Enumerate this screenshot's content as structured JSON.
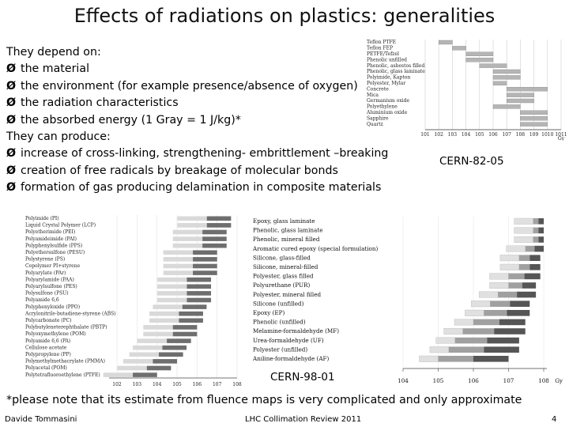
{
  "slide": {
    "title": "Effects of radiations on plastics: generalities",
    "lines": [
      {
        "bullet": false,
        "text": "They depend on:"
      },
      {
        "bullet": true,
        "text": "the material"
      },
      {
        "bullet": true,
        "text": "the environment (for example presence/absence of oxygen)"
      },
      {
        "bullet": true,
        "text": "the radiation characteristics"
      },
      {
        "bullet": true,
        "text": "the absorbed energy (1 Gray = 1 J/kg)*"
      },
      {
        "bullet": false,
        "text": "They can produce:"
      },
      {
        "bullet": true,
        "text": "increase of cross-linking, strengthening- embrittlement –breaking"
      },
      {
        "bullet": true,
        "text": "creation of free radicals by breakage of molecular bonds"
      },
      {
        "bullet": true,
        "text": "formation of gas producing delamination in composite materials"
      }
    ],
    "bullet_glyph": "Ø",
    "ref_top": "CERN-82-05",
    "ref_bottom": "CERN-98-01",
    "footnote": "*please note that its estimate from fluence maps is very complicated and only approximate",
    "footer": {
      "author": "Davide Tommasini",
      "event": "LHC Collimation Review 2011",
      "page": "4"
    }
  },
  "chart_data": [
    {
      "type": "bar",
      "title": "",
      "categories": [
        "Teflon PTFE",
        "Teflon FEP",
        "PETFE/Tefzel",
        "Phenolic unfilled",
        "Phenolic, asbestos filled",
        "Phenolic, glass laminate",
        "Polyimide, Kapton",
        "Polyester, Mylar",
        "Concrete",
        "Mica",
        "Germanium oxide",
        "Polyethylene",
        "Aluminium oxide",
        "Sapphire",
        "Quartz"
      ],
      "xlabel": "Gy",
      "x_scale": "log",
      "xlim": [
        10,
        100000000000
      ],
      "x_ticks": [
        "10^1",
        "10^2",
        "10^3",
        "10^4",
        "10^5",
        "10^6",
        "10^7",
        "10^8",
        "10^9",
        "10^10",
        "10^11"
      ],
      "series": [
        {
          "name": "damage range start",
          "values": [
            100,
            1000,
            10000,
            10000,
            100000,
            1000000,
            1000000,
            1000000,
            10000000,
            10000000,
            10000000,
            1000000,
            100000000,
            100000000,
            100000000
          ]
        },
        {
          "name": "damage range end",
          "values": [
            1000,
            10000,
            1000000,
            1000000,
            10000000,
            100000000,
            100000000,
            10000000,
            10000000000,
            1000000000,
            1000000000,
            100000000,
            10000000000,
            10000000000,
            10000000000
          ]
        }
      ]
    },
    {
      "type": "bar",
      "title": "",
      "categories": [
        "Polyimide (PI)",
        "Liquid Crystal Polymer (LCP)",
        "Polyetherimide (PEI)",
        "Polyamideimide (PAI)",
        "Polyphenylsulfide (PPS)",
        "Polyethersulfone (PESU)",
        "Polystyrene (PS)",
        "Copolymer PI+styrene",
        "Polyarylate (PAr)",
        "Polyarylamide (PAA)",
        "Polyarylsulfone (PES)",
        "Polysulfone (PSU)",
        "Polyamide 6,6",
        "Polyphenyloxide (PPO)",
        "Acrylonitrile-butadiene-styrene (ABS)",
        "Polycarbonate (PC)",
        "Polybutyleneterephthalate (PBTP)",
        "Polyoxymethylene (POM)",
        "Polyamide 6,6 (PA)",
        "Cellulose acetate",
        "Polypropylene (PP)",
        "Polymethylmethacrylate (PMMA)",
        "Polyacetal (POM)",
        "Polytetrafluoroethylene (PTFE)"
      ],
      "x_scale": "log",
      "x_ticks": [
        "10^2",
        "10^3",
        "10^4",
        "10^5",
        "10^6",
        "10^7",
        "10^8"
      ],
      "series": [
        {
          "name": "limit",
          "values": [
            50000000,
            50000000,
            30000000,
            30000000,
            30000000,
            10000000,
            10000000,
            10000000,
            10000000,
            5000000,
            5000000,
            5000000,
            5000000,
            3000000,
            2000000,
            2000000,
            1000000,
            1000000,
            500000,
            300000,
            200000,
            100000,
            50000,
            10000
          ]
        }
      ]
    },
    {
      "type": "bar",
      "title": "",
      "categories": [
        "Epoxy, glass laminate",
        "Phenolic, glass laminate",
        "Phenolic, mineral filled",
        "Aromatic cured epoxy (special formulation)",
        "Silicone, glass-filled",
        "Silicone, mineral-filled",
        "Polyester, glass filled",
        "Polyurethane (PUR)",
        "Polyester, mineral filled",
        "Silicone (unfilled)",
        "Epoxy (EP)",
        "Phenolic (unfilled)",
        "Melamine-formaldehyde (MF)",
        "Urea-formaldehyde (UF)",
        "Polyester (unfilled)",
        "Aniline-formaldehyde (AF)"
      ],
      "xlabel": "Gy",
      "x_scale": "log",
      "xlim": [
        10000,
        100000000
      ],
      "x_ticks": [
        "10^4",
        "10^5",
        "10^6",
        "10^7",
        "10^8"
      ],
      "series": [
        {
          "name": "light damage start",
          "values": [
            50000000,
            50000000,
            50000000,
            30000000,
            20000000,
            20000000,
            10000000,
            10000000,
            5000000,
            3000000,
            2000000,
            1000000,
            500000,
            300000,
            200000,
            100000
          ]
        },
        {
          "name": "severe damage",
          "values": [
            100000000,
            100000000,
            100000000,
            100000000,
            80000000,
            80000000,
            80000000,
            60000000,
            60000000,
            40000000,
            40000000,
            30000000,
            30000000,
            20000000,
            20000000,
            10000000
          ]
        }
      ]
    }
  ],
  "colors": {
    "background": "#ffffff",
    "bar_light": "#d8d8d8",
    "bar_mid": "#9a9a9a",
    "bar_dark": "#555555"
  }
}
